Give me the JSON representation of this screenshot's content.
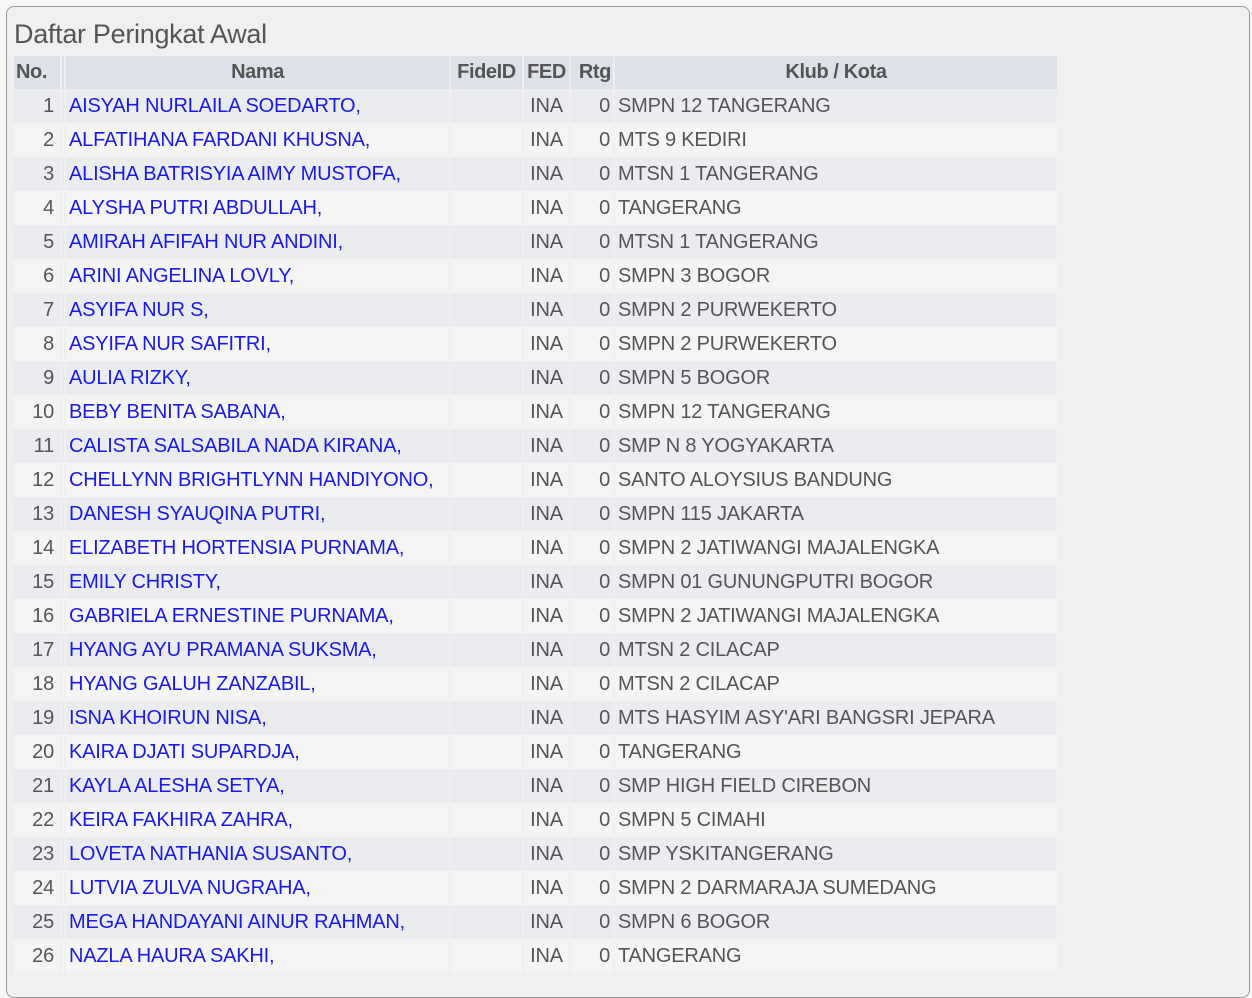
{
  "title": "Daftar Peringkat Awal",
  "columns": {
    "no": "No.",
    "name": "Nama",
    "fideid": "FideID",
    "fed": "FED",
    "rtg": "Rtg",
    "club": "Klub / Kota"
  },
  "rows": [
    {
      "no": "1",
      "name": "AISYAH NURLAILA SOEDARTO,",
      "fideid": "",
      "fed": "INA",
      "rtg": "0",
      "club": "SMPN 12 TANGERANG"
    },
    {
      "no": "2",
      "name": "ALFATIHANA FARDANI KHUSNA,",
      "fideid": "",
      "fed": "INA",
      "rtg": "0",
      "club": "MTS 9 KEDIRI"
    },
    {
      "no": "3",
      "name": "ALISHA BATRISYIA AIMY MUSTOFA,",
      "fideid": "",
      "fed": "INA",
      "rtg": "0",
      "club": "MTSN 1 TANGERANG"
    },
    {
      "no": "4",
      "name": "ALYSHA PUTRI ABDULLAH,",
      "fideid": "",
      "fed": "INA",
      "rtg": "0",
      "club": "TANGERANG"
    },
    {
      "no": "5",
      "name": "AMIRAH AFIFAH NUR ANDINI,",
      "fideid": "",
      "fed": "INA",
      "rtg": "0",
      "club": "MTSN 1 TANGERANG"
    },
    {
      "no": "6",
      "name": "ARINI ANGELINA LOVLY,",
      "fideid": "",
      "fed": "INA",
      "rtg": "0",
      "club": "SMPN 3 BOGOR"
    },
    {
      "no": "7",
      "name": "ASYIFA NUR S,",
      "fideid": "",
      "fed": "INA",
      "rtg": "0",
      "club": "SMPN 2 PURWEKERTO"
    },
    {
      "no": "8",
      "name": "ASYIFA NUR SAFITRI,",
      "fideid": "",
      "fed": "INA",
      "rtg": "0",
      "club": "SMPN 2 PURWEKERTO"
    },
    {
      "no": "9",
      "name": "AULIA RIZKY,",
      "fideid": "",
      "fed": "INA",
      "rtg": "0",
      "club": "SMPN 5 BOGOR"
    },
    {
      "no": "10",
      "name": "BEBY BENITA SABANA,",
      "fideid": "",
      "fed": "INA",
      "rtg": "0",
      "club": "SMPN 12 TANGERANG"
    },
    {
      "no": "11",
      "name": "CALISTA SALSABILA NADA KIRANA,",
      "fideid": "",
      "fed": "INA",
      "rtg": "0",
      "club": "SMP N 8 YOGYAKARTA"
    },
    {
      "no": "12",
      "name": "CHELLYNN BRIGHTLYNN HANDIYONO,",
      "fideid": "",
      "fed": "INA",
      "rtg": "0",
      "club": "SANTO ALOYSIUS BANDUNG"
    },
    {
      "no": "13",
      "name": "DANESH SYAUQINA PUTRI,",
      "fideid": "",
      "fed": "INA",
      "rtg": "0",
      "club": "SMPN 115 JAKARTA"
    },
    {
      "no": "14",
      "name": "ELIZABETH HORTENSIA PURNAMA,",
      "fideid": "",
      "fed": "INA",
      "rtg": "0",
      "club": "SMPN 2 JATIWANGI MAJALENGKA"
    },
    {
      "no": "15",
      "name": "EMILY CHRISTY,",
      "fideid": "",
      "fed": "INA",
      "rtg": "0",
      "club": "SMPN 01 GUNUNGPUTRI BOGOR"
    },
    {
      "no": "16",
      "name": "GABRIELA ERNESTINE PURNAMA,",
      "fideid": "",
      "fed": "INA",
      "rtg": "0",
      "club": "SMPN 2 JATIWANGI MAJALENGKA"
    },
    {
      "no": "17",
      "name": "HYANG AYU PRAMANA SUKSMA,",
      "fideid": "",
      "fed": "INA",
      "rtg": "0",
      "club": "MTSN 2 CILACAP"
    },
    {
      "no": "18",
      "name": "HYANG GALUH ZANZABIL,",
      "fideid": "",
      "fed": "INA",
      "rtg": "0",
      "club": "MTSN 2 CILACAP"
    },
    {
      "no": "19",
      "name": "ISNA KHOIRUN NISA,",
      "fideid": "",
      "fed": "INA",
      "rtg": "0",
      "club": "MTS HASYIM ASY'ARI BANGSRI JEPARA"
    },
    {
      "no": "20",
      "name": "KAIRA DJATI SUPARDJA,",
      "fideid": "",
      "fed": "INA",
      "rtg": "0",
      "club": "TANGERANG"
    },
    {
      "no": "21",
      "name": "KAYLA ALESHA SETYA,",
      "fideid": "",
      "fed": "INA",
      "rtg": "0",
      "club": "SMP HIGH FIELD CIREBON"
    },
    {
      "no": "22",
      "name": "KEIRA FAKHIRA ZAHRA,",
      "fideid": "",
      "fed": "INA",
      "rtg": "0",
      "club": "SMPN 5 CIMAHI"
    },
    {
      "no": "23",
      "name": "LOVETA NATHANIA SUSANTO,",
      "fideid": "",
      "fed": "INA",
      "rtg": "0",
      "club": "SMP YSKITANGERANG"
    },
    {
      "no": "24",
      "name": "LUTVIA ZULVA NUGRAHA,",
      "fideid": "",
      "fed": "INA",
      "rtg": "0",
      "club": "SMPN 2 DARMARAJA SUMEDANG"
    },
    {
      "no": "25",
      "name": "MEGA HANDAYANI AINUR RAHMAN,",
      "fideid": "",
      "fed": "INA",
      "rtg": "0",
      "club": "SMPN 6 BOGOR"
    },
    {
      "no": "26",
      "name": "NAZLA HAURA SAKHI,",
      "fideid": "",
      "fed": "INA",
      "rtg": "0",
      "club": "TANGERANG"
    }
  ]
}
